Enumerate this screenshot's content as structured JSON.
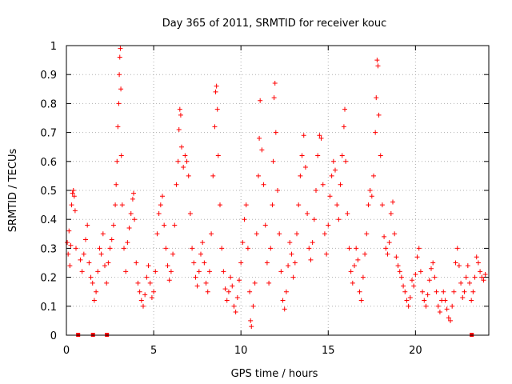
{
  "chart_data": {
    "type": "scatter",
    "title": "Day 365 of 2011, SRMTID for receiver kouc",
    "xlabel": "GPS time / hours",
    "ylabel": "SRMTID / TECUs",
    "xlim": [
      0,
      24.2
    ],
    "ylim": [
      0,
      1
    ],
    "grid": true,
    "marker": "+",
    "color": "#ff0000",
    "x_ticks": [
      0,
      5,
      10,
      15,
      20
    ],
    "x_tick_labels": [
      "0",
      "5",
      "10",
      "15",
      "20"
    ],
    "y_ticks": [
      0,
      0.1,
      0.2,
      0.3,
      0.4,
      0.5,
      0.6,
      0.7,
      0.8,
      0.9,
      1
    ],
    "y_tick_labels": [
      "0",
      "0.1",
      "0.2",
      "0.3",
      "0.4",
      "0.5",
      "0.6",
      "0.7",
      "0.8",
      "0.9",
      "1"
    ],
    "zero_points_x": [
      0.65,
      1.5,
      2.3,
      23.2
    ],
    "series": [
      {
        "name": "SRMTID",
        "points": [
          [
            0.05,
            0.32
          ],
          [
            0.1,
            0.28
          ],
          [
            0.15,
            0.36
          ],
          [
            0.2,
            0.24
          ],
          [
            0.25,
            0.31
          ],
          [
            0.3,
            0.45
          ],
          [
            0.35,
            0.49
          ],
          [
            0.4,
            0.5
          ],
          [
            0.45,
            0.48
          ],
          [
            0.5,
            0.43
          ],
          [
            0.55,
            0.3
          ],
          [
            0.8,
            0.26
          ],
          [
            0.9,
            0.22
          ],
          [
            1.0,
            0.28
          ],
          [
            1.1,
            0.33
          ],
          [
            1.2,
            0.38
          ],
          [
            1.3,
            0.25
          ],
          [
            1.4,
            0.2
          ],
          [
            1.5,
            0.18
          ],
          [
            1.6,
            0.12
          ],
          [
            1.7,
            0.15
          ],
          [
            1.8,
            0.22
          ],
          [
            1.9,
            0.3
          ],
          [
            2.0,
            0.28
          ],
          [
            2.1,
            0.35
          ],
          [
            2.2,
            0.24
          ],
          [
            2.3,
            0.18
          ],
          [
            2.4,
            0.25
          ],
          [
            2.5,
            0.3
          ],
          [
            2.6,
            0.33
          ],
          [
            2.7,
            0.38
          ],
          [
            2.8,
            0.45
          ],
          [
            2.85,
            0.52
          ],
          [
            2.9,
            0.6
          ],
          [
            2.95,
            0.72
          ],
          [
            3.0,
            0.8
          ],
          [
            3.03,
            0.9
          ],
          [
            3.06,
            0.96
          ],
          [
            3.09,
            0.99
          ],
          [
            3.12,
            0.85
          ],
          [
            3.15,
            0.62
          ],
          [
            3.2,
            0.45
          ],
          [
            3.3,
            0.3
          ],
          [
            3.4,
            0.22
          ],
          [
            3.5,
            0.32
          ],
          [
            3.6,
            0.37
          ],
          [
            3.7,
            0.42
          ],
          [
            3.8,
            0.47
          ],
          [
            3.85,
            0.49
          ],
          [
            3.9,
            0.4
          ],
          [
            4.0,
            0.25
          ],
          [
            4.1,
            0.18
          ],
          [
            4.2,
            0.15
          ],
          [
            4.3,
            0.12
          ],
          [
            4.4,
            0.1
          ],
          [
            4.5,
            0.14
          ],
          [
            4.6,
            0.2
          ],
          [
            4.7,
            0.24
          ],
          [
            4.8,
            0.18
          ],
          [
            4.9,
            0.13
          ],
          [
            5.0,
            0.15
          ],
          [
            5.1,
            0.22
          ],
          [
            5.2,
            0.35
          ],
          [
            5.3,
            0.42
          ],
          [
            5.4,
            0.45
          ],
          [
            5.5,
            0.48
          ],
          [
            5.6,
            0.38
          ],
          [
            5.7,
            0.3
          ],
          [
            5.8,
            0.24
          ],
          [
            5.9,
            0.19
          ],
          [
            6.0,
            0.22
          ],
          [
            6.1,
            0.28
          ],
          [
            6.2,
            0.38
          ],
          [
            6.3,
            0.52
          ],
          [
            6.4,
            0.6
          ],
          [
            6.45,
            0.71
          ],
          [
            6.5,
            0.78
          ],
          [
            6.55,
            0.76
          ],
          [
            6.6,
            0.65
          ],
          [
            6.7,
            0.58
          ],
          [
            6.8,
            0.62
          ],
          [
            6.9,
            0.6
          ],
          [
            7.0,
            0.55
          ],
          [
            7.1,
            0.42
          ],
          [
            7.2,
            0.3
          ],
          [
            7.3,
            0.25
          ],
          [
            7.4,
            0.2
          ],
          [
            7.5,
            0.17
          ],
          [
            7.6,
            0.22
          ],
          [
            7.7,
            0.28
          ],
          [
            7.8,
            0.32
          ],
          [
            7.9,
            0.25
          ],
          [
            8.0,
            0.18
          ],
          [
            8.1,
            0.15
          ],
          [
            8.2,
            0.22
          ],
          [
            8.3,
            0.35
          ],
          [
            8.4,
            0.55
          ],
          [
            8.5,
            0.72
          ],
          [
            8.55,
            0.84
          ],
          [
            8.6,
            0.86
          ],
          [
            8.65,
            0.78
          ],
          [
            8.7,
            0.62
          ],
          [
            8.8,
            0.45
          ],
          [
            8.9,
            0.3
          ],
          [
            9.0,
            0.22
          ],
          [
            9.1,
            0.16
          ],
          [
            9.2,
            0.12
          ],
          [
            9.3,
            0.15
          ],
          [
            9.4,
            0.2
          ],
          [
            9.5,
            0.17
          ],
          [
            9.6,
            0.1
          ],
          [
            9.7,
            0.08
          ],
          [
            9.8,
            0.13
          ],
          [
            9.9,
            0.19
          ],
          [
            10.0,
            0.25
          ],
          [
            10.1,
            0.32
          ],
          [
            10.2,
            0.4
          ],
          [
            10.3,
            0.45
          ],
          [
            10.4,
            0.3
          ],
          [
            10.5,
            0.15
          ],
          [
            10.55,
            0.05
          ],
          [
            10.6,
            0.03
          ],
          [
            10.7,
            0.1
          ],
          [
            10.8,
            0.18
          ],
          [
            10.9,
            0.35
          ],
          [
            11.0,
            0.55
          ],
          [
            11.05,
            0.68
          ],
          [
            11.1,
            0.81
          ],
          [
            11.2,
            0.64
          ],
          [
            11.3,
            0.52
          ],
          [
            11.4,
            0.38
          ],
          [
            11.5,
            0.25
          ],
          [
            11.6,
            0.18
          ],
          [
            11.7,
            0.3
          ],
          [
            11.8,
            0.45
          ],
          [
            11.85,
            0.6
          ],
          [
            11.9,
            0.82
          ],
          [
            11.95,
            0.87
          ],
          [
            12.0,
            0.7
          ],
          [
            12.1,
            0.5
          ],
          [
            12.2,
            0.35
          ],
          [
            12.3,
            0.22
          ],
          [
            12.4,
            0.12
          ],
          [
            12.5,
            0.09
          ],
          [
            12.6,
            0.15
          ],
          [
            12.7,
            0.24
          ],
          [
            12.8,
            0.32
          ],
          [
            12.9,
            0.28
          ],
          [
            13.0,
            0.2
          ],
          [
            13.1,
            0.25
          ],
          [
            13.2,
            0.35
          ],
          [
            13.3,
            0.45
          ],
          [
            13.4,
            0.55
          ],
          [
            13.5,
            0.62
          ],
          [
            13.6,
            0.69
          ],
          [
            13.7,
            0.58
          ],
          [
            13.8,
            0.42
          ],
          [
            13.9,
            0.3
          ],
          [
            14.0,
            0.26
          ],
          [
            14.1,
            0.32
          ],
          [
            14.2,
            0.4
          ],
          [
            14.3,
            0.5
          ],
          [
            14.4,
            0.62
          ],
          [
            14.5,
            0.69
          ],
          [
            14.6,
            0.68
          ],
          [
            14.7,
            0.52
          ],
          [
            14.8,
            0.35
          ],
          [
            14.9,
            0.28
          ],
          [
            15.0,
            0.38
          ],
          [
            15.1,
            0.48
          ],
          [
            15.2,
            0.55
          ],
          [
            15.3,
            0.6
          ],
          [
            15.4,
            0.57
          ],
          [
            15.5,
            0.45
          ],
          [
            15.6,
            0.4
          ],
          [
            15.7,
            0.52
          ],
          [
            15.8,
            0.62
          ],
          [
            15.9,
            0.72
          ],
          [
            15.95,
            0.78
          ],
          [
            16.0,
            0.6
          ],
          [
            16.1,
            0.42
          ],
          [
            16.2,
            0.3
          ],
          [
            16.3,
            0.22
          ],
          [
            16.4,
            0.18
          ],
          [
            16.5,
            0.24
          ],
          [
            16.6,
            0.3
          ],
          [
            16.7,
            0.26
          ],
          [
            16.8,
            0.15
          ],
          [
            16.9,
            0.12
          ],
          [
            17.0,
            0.2
          ],
          [
            17.1,
            0.28
          ],
          [
            17.2,
            0.35
          ],
          [
            17.3,
            0.45
          ],
          [
            17.4,
            0.5
          ],
          [
            17.5,
            0.48
          ],
          [
            17.6,
            0.55
          ],
          [
            17.7,
            0.7
          ],
          [
            17.75,
            0.82
          ],
          [
            17.8,
            0.95
          ],
          [
            17.85,
            0.93
          ],
          [
            17.9,
            0.76
          ],
          [
            18.0,
            0.62
          ],
          [
            18.1,
            0.45
          ],
          [
            18.2,
            0.34
          ],
          [
            18.3,
            0.3
          ],
          [
            18.4,
            0.28
          ],
          [
            18.5,
            0.32
          ],
          [
            18.6,
            0.42
          ],
          [
            18.7,
            0.46
          ],
          [
            18.8,
            0.35
          ],
          [
            18.9,
            0.27
          ],
          [
            19.0,
            0.24
          ],
          [
            19.1,
            0.22
          ],
          [
            19.2,
            0.2
          ],
          [
            19.3,
            0.17
          ],
          [
            19.4,
            0.15
          ],
          [
            19.5,
            0.12
          ],
          [
            19.6,
            0.1
          ],
          [
            19.7,
            0.13
          ],
          [
            19.8,
            0.19
          ],
          [
            19.9,
            0.17
          ],
          [
            20.0,
            0.21
          ],
          [
            20.1,
            0.27
          ],
          [
            20.2,
            0.3
          ],
          [
            20.3,
            0.22
          ],
          [
            20.4,
            0.15
          ],
          [
            20.5,
            0.12
          ],
          [
            20.6,
            0.1
          ],
          [
            20.7,
            0.14
          ],
          [
            20.8,
            0.19
          ],
          [
            20.9,
            0.23
          ],
          [
            21.0,
            0.25
          ],
          [
            21.1,
            0.2
          ],
          [
            21.2,
            0.15
          ],
          [
            21.3,
            0.1
          ],
          [
            21.4,
            0.08
          ],
          [
            21.5,
            0.12
          ],
          [
            21.6,
            0.15
          ],
          [
            21.7,
            0.12
          ],
          [
            21.8,
            0.09
          ],
          [
            21.9,
            0.06
          ],
          [
            22.0,
            0.05
          ],
          [
            22.1,
            0.1
          ],
          [
            22.2,
            0.15
          ],
          [
            22.3,
            0.25
          ],
          [
            22.4,
            0.3
          ],
          [
            22.5,
            0.24
          ],
          [
            22.6,
            0.18
          ],
          [
            22.7,
            0.13
          ],
          [
            22.8,
            0.15
          ],
          [
            22.9,
            0.2
          ],
          [
            23.0,
            0.24
          ],
          [
            23.1,
            0.18
          ],
          [
            23.2,
            0.12
          ],
          [
            23.3,
            0.15
          ],
          [
            23.4,
            0.2
          ],
          [
            23.5,
            0.27
          ],
          [
            23.6,
            0.25
          ],
          [
            23.7,
            0.22
          ],
          [
            23.8,
            0.2
          ],
          [
            23.9,
            0.19
          ],
          [
            24.0,
            0.21
          ]
        ]
      }
    ]
  }
}
